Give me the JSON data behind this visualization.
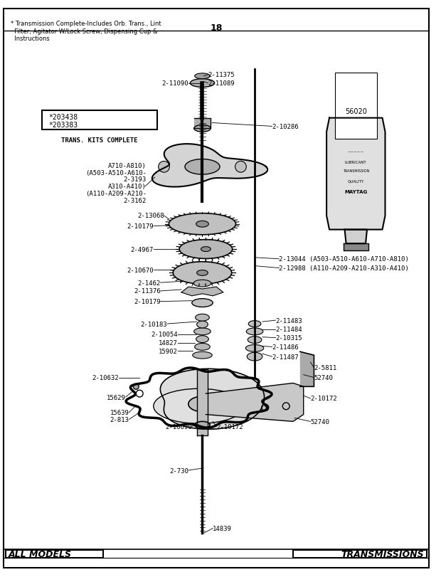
{
  "title_left": "ALL MODELS",
  "title_right": "TRANSMISSIONS",
  "page_number": "18",
  "footnote": "* Transmission Complete-Includes Orb. Trans., Lint\n  Filter, Agitator W/Lock Screw, Dispensing Cup &\n  Instructions"
}
